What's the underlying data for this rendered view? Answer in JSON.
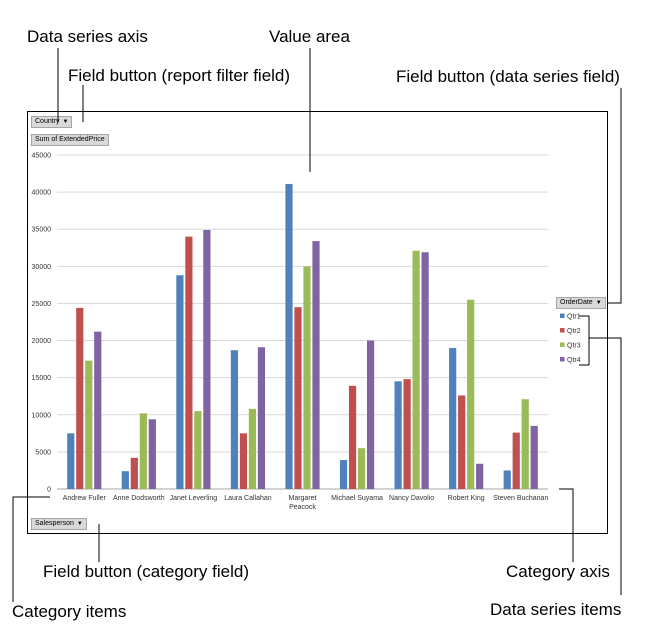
{
  "callouts": {
    "data_series_axis": "Data series axis",
    "value_area": "Value area",
    "report_filter_button": "Field button (report filter field)",
    "data_series_button": "Field button (data series field)",
    "category_button": "Field button (category field)",
    "category_axis": "Category axis",
    "category_items": "Category items",
    "data_series_items": "Data series items"
  },
  "field_buttons": {
    "report_filter": "Country",
    "values": "Sum of ExtendedPrice",
    "series": "OrderDate",
    "category": "Salesperson",
    "dropdown_icon": "triangle-down"
  },
  "chart_data": {
    "type": "bar",
    "categories": [
      [
        "Andrew Fuller"
      ],
      [
        "Anne Dodsworth"
      ],
      [
        "Janet Leverling"
      ],
      [
        "Laura Callahan"
      ],
      [
        "Margaret",
        "Peacock"
      ],
      [
        "Michael Suyama"
      ],
      [
        "Nancy Davolio"
      ],
      [
        "Robert King"
      ],
      [
        "Steven Buchanan"
      ]
    ],
    "series": [
      {
        "name": "Qtr1",
        "color": "#4f81bd",
        "values": [
          7500,
          2400,
          28800,
          18700,
          41100,
          3900,
          14500,
          19000,
          2500
        ]
      },
      {
        "name": "Qtr2",
        "color": "#c0504d",
        "values": [
          24400,
          4200,
          34000,
          7500,
          24500,
          13900,
          14800,
          12600,
          7600
        ]
      },
      {
        "name": "Qtr3",
        "color": "#9bbb59",
        "values": [
          17300,
          10200,
          10500,
          10800,
          30000,
          5500,
          32100,
          25500,
          12100
        ]
      },
      {
        "name": "Qtr4",
        "color": "#8064a2",
        "values": [
          21200,
          9400,
          34900,
          19100,
          33400,
          20000,
          31900,
          3400,
          8500
        ]
      }
    ],
    "yticks": [
      "0",
      "5000",
      "10000",
      "15000",
      "20000",
      "25000",
      "30000",
      "35000",
      "40000",
      "45000"
    ],
    "ylim": [
      0,
      45000
    ],
    "grid": true,
    "legend": "right"
  }
}
